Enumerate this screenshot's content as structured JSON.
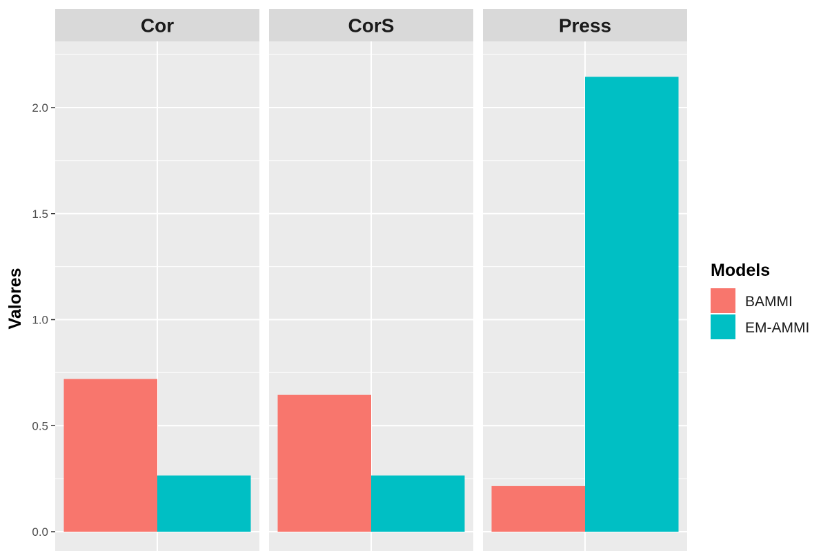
{
  "chart_data": {
    "type": "bar",
    "facets": [
      "Cor",
      "CorS",
      "Press"
    ],
    "series": [
      {
        "name": "BAMMI",
        "color": "#F8766D",
        "values": [
          0.72,
          0.645,
          0.215
        ]
      },
      {
        "name": "EM-AMMI",
        "color": "#00BFC4",
        "values": [
          0.265,
          0.265,
          2.145
        ]
      }
    ],
    "ylabel": "Valores",
    "xlabel": "",
    "ylim": [
      0,
      2.2
    ],
    "y_ticks": [
      "0.0",
      "0.5",
      "1.0",
      "1.5",
      "2.0"
    ],
    "y_tick_values": [
      0.0,
      0.5,
      1.0,
      1.5,
      2.0
    ],
    "legend": {
      "title": "Models",
      "placement": "right",
      "entries": [
        "BAMMI",
        "EM-AMMI"
      ]
    },
    "grid": true,
    "panel_background": "#EBEBEB",
    "strip_background": "#D9D9D9"
  }
}
